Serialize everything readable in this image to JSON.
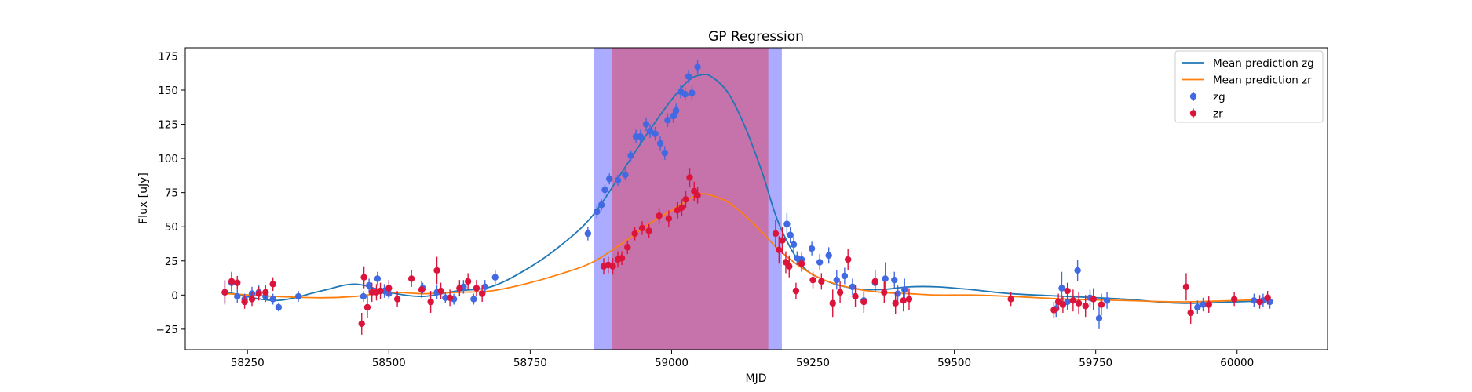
{
  "chart_data": {
    "type": "scatter",
    "title": "GP Regression",
    "xlabel": "MJD",
    "ylabel": "Flux [uJy]",
    "xlim": [
      58140,
      60160
    ],
    "ylim": [
      -40,
      181
    ],
    "xticks": [
      58250,
      58500,
      58750,
      59000,
      59250,
      59500,
      59750,
      60000
    ],
    "yticks": [
      -25,
      0,
      25,
      50,
      75,
      100,
      125,
      150,
      175
    ],
    "grid": false,
    "legend_position": "upper right",
    "shaded_regions": [
      {
        "x0": 58862,
        "x1": 59195,
        "color": "#0000ff",
        "alpha": 0.33
      },
      {
        "x0": 58895,
        "x1": 59171,
        "color": "#ff0000",
        "alpha": 0.33
      }
    ],
    "lines": [
      {
        "name": "Mean prediction zg",
        "color": "#1f77b4",
        "x": [
          58215,
          58300,
          58380,
          58440,
          58500,
          58560,
          58620,
          58680,
          58740,
          58800,
          58860,
          58920,
          58960,
          59000,
          59030,
          59050,
          59070,
          59100,
          59130,
          59160,
          59190,
          59230,
          59270,
          59320,
          59370,
          59420,
          59470,
          59530,
          59600,
          59700,
          59800,
          59900,
          60000,
          60060
        ],
        "y": [
          2,
          -4,
          3,
          8,
          2,
          -1,
          3,
          6,
          18,
          35,
          58,
          95,
          120,
          143,
          157,
          161,
          160,
          148,
          123,
          90,
          52,
          22,
          11,
          5,
          4,
          6,
          6,
          4,
          1,
          -1,
          -3,
          -6,
          -5,
          -4
        ]
      },
      {
        "name": "Mean prediction zr",
        "color": "#ff7f0e",
        "x": [
          58215,
          58300,
          58380,
          58440,
          58500,
          58560,
          58620,
          58680,
          58740,
          58800,
          58860,
          58920,
          58960,
          59000,
          59030,
          59050,
          59070,
          59100,
          59130,
          59160,
          59190,
          59230,
          59270,
          59320,
          59370,
          59420,
          59470,
          59530,
          59600,
          59700,
          59800,
          59900,
          60000,
          60060
        ],
        "y": [
          1,
          -1,
          -2,
          -1,
          2,
          1,
          2,
          3,
          8,
          15,
          24,
          40,
          52,
          62,
          70,
          74,
          73,
          68,
          58,
          46,
          33,
          20,
          11,
          5,
          2,
          1,
          0,
          0,
          -1,
          -3,
          -4,
          -5,
          -4,
          -3
        ]
      }
    ],
    "series": [
      {
        "name": "zg",
        "color": "#4169e1",
        "x": [
          58210,
          58222,
          58232,
          58245,
          58258,
          58270,
          58282,
          58295,
          58305,
          58340,
          58455,
          58465,
          58480,
          58492,
          58500,
          58560,
          58585,
          58600,
          58615,
          58632,
          58650,
          58670,
          58688,
          58852,
          58868,
          58876,
          58882,
          58890,
          58905,
          58918,
          58928,
          58937,
          58945,
          58955,
          58962,
          58971,
          58980,
          58988,
          58993,
          59003,
          59008,
          59016,
          59024,
          59030,
          59036,
          59046,
          59204,
          59210,
          59216,
          59222,
          59230,
          59248,
          59262,
          59278,
          59292,
          59306,
          59320,
          59340,
          59360,
          59378,
          59394,
          59400,
          59412,
          59680,
          59690,
          59700,
          59718,
          59740,
          59756,
          59770,
          59930,
          59940,
          60030,
          60046,
          60058
        ],
        "y": [
          2,
          9,
          -1,
          -3,
          1,
          2,
          -1,
          -3,
          -9,
          -1,
          -1,
          7,
          12,
          3,
          1,
          5,
          2,
          -2,
          -3,
          6,
          -3,
          6,
          13,
          45,
          61,
          66,
          77,
          85,
          84,
          88,
          102,
          116,
          116,
          125,
          120,
          118,
          111,
          104,
          128,
          131,
          135,
          149,
          147,
          160,
          148,
          167,
          52,
          44,
          37,
          27,
          26,
          34,
          24,
          29,
          11,
          14,
          6,
          -4,
          9,
          12,
          11,
          1,
          4,
          -10,
          5,
          -5,
          18,
          -2,
          -17,
          -4,
          -9,
          -7,
          -4,
          -4,
          -5
        ],
        "err": [
          9,
          7,
          5,
          4,
          5,
          5,
          4,
          4,
          3,
          4,
          4,
          5,
          5,
          5,
          4,
          4,
          5,
          4,
          4,
          5,
          4,
          5,
          5,
          5,
          5,
          4,
          4,
          4,
          4,
          4,
          4,
          5,
          5,
          5,
          5,
          5,
          5,
          5,
          5,
          5,
          5,
          5,
          5,
          5,
          5,
          5,
          8,
          6,
          6,
          5,
          5,
          5,
          6,
          6,
          7,
          6,
          6,
          6,
          6,
          12,
          6,
          6,
          8,
          6,
          12,
          6,
          8,
          6,
          8,
          6,
          5,
          5,
          5,
          5,
          5
        ]
      },
      {
        "name": "zr",
        "color": "#dc143c",
        "x": [
          58210,
          58222,
          58232,
          58245,
          58258,
          58270,
          58282,
          58295,
          58452,
          58456,
          58462,
          58470,
          58478,
          58485,
          58500,
          58515,
          58540,
          58558,
          58574,
          58585,
          58592,
          58608,
          58625,
          58640,
          58655,
          58665,
          58880,
          58888,
          58896,
          58905,
          58912,
          58922,
          58935,
          58948,
          58960,
          58978,
          58995,
          59010,
          59018,
          59025,
          59032,
          59040,
          59046,
          59184,
          59190,
          59196,
          59202,
          59208,
          59220,
          59230,
          59250,
          59265,
          59285,
          59298,
          59312,
          59325,
          59340,
          59360,
          59376,
          59396,
          59410,
          59420,
          59600,
          59676,
          59684,
          59692,
          59700,
          59710,
          59720,
          59732,
          59746,
          59760,
          59910,
          59918,
          59950,
          59995,
          60040,
          60054
        ],
        "y": [
          2,
          10,
          9,
          -5,
          -3,
          1,
          2,
          8,
          -21,
          13,
          -9,
          2,
          2,
          3,
          5,
          -3,
          12,
          4,
          -5,
          18,
          3,
          -2,
          5,
          10,
          5,
          1,
          21,
          22,
          21,
          26,
          27,
          35,
          45,
          49,
          47,
          58,
          56,
          62,
          64,
          70,
          86,
          76,
          73,
          45,
          33,
          40,
          24,
          21,
          3,
          23,
          11,
          10,
          -6,
          2,
          26,
          -1,
          -5,
          10,
          2,
          -6,
          -4,
          -3,
          -3,
          -11,
          -5,
          -7,
          3,
          -4,
          -6,
          -8,
          -3,
          -7,
          6,
          -13,
          -7,
          -3,
          -5,
          -2
        ],
        "err": [
          8,
          7,
          5,
          5,
          5,
          5,
          5,
          5,
          8,
          8,
          8,
          7,
          6,
          6,
          6,
          6,
          6,
          6,
          8,
          10,
          6,
          6,
          6,
          6,
          6,
          6,
          6,
          6,
          6,
          6,
          5,
          5,
          5,
          5,
          5,
          6,
          6,
          6,
          6,
          6,
          7,
          7,
          6,
          10,
          10,
          10,
          8,
          8,
          6,
          6,
          6,
          6,
          10,
          8,
          8,
          8,
          8,
          8,
          8,
          8,
          8,
          8,
          5,
          6,
          6,
          6,
          6,
          8,
          8,
          8,
          8,
          8,
          10,
          8,
          6,
          5,
          5,
          5
        ]
      }
    ],
    "legend": [
      {
        "label": "Mean prediction zg",
        "kind": "line",
        "color": "#1f77b4"
      },
      {
        "label": "Mean prediction zr",
        "kind": "line",
        "color": "#ff7f0e"
      },
      {
        "label": "zg",
        "kind": "errorbar",
        "color": "#4169e1"
      },
      {
        "label": "zr",
        "kind": "errorbar",
        "color": "#dc143c"
      }
    ]
  }
}
